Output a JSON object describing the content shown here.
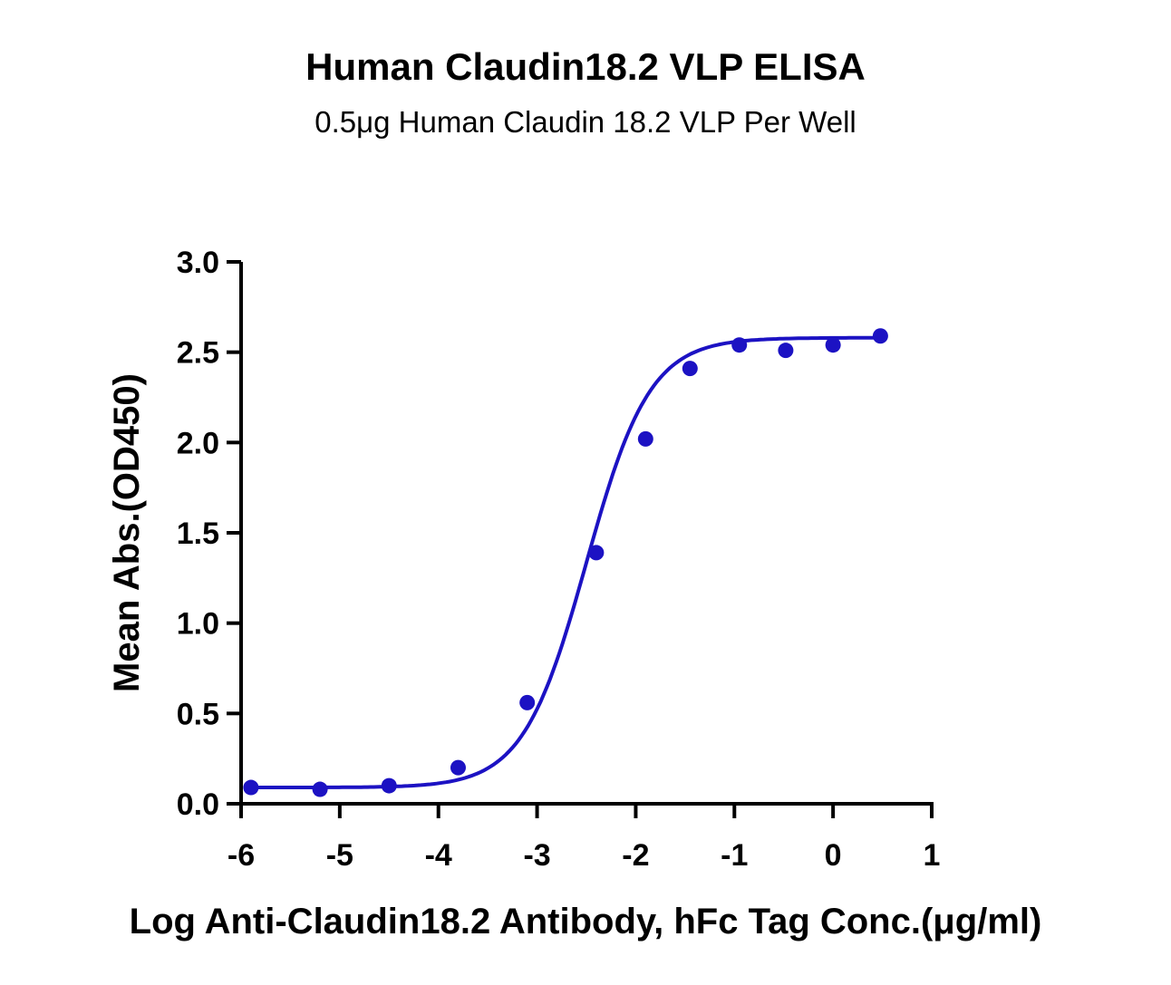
{
  "chart_data": {
    "type": "scatter",
    "title": "Human Claudin18.2 VLP ELISA",
    "subtitle": "0.5μg Human Claudin 18.2 VLP Per Well",
    "xlabel": "Log Anti-Claudin18.2 Antibody, hFc Tag Conc.(μg/ml)",
    "ylabel": "Mean Abs.(OD450)",
    "xlim": [
      -6,
      1
    ],
    "ylim": [
      0,
      3
    ],
    "x_ticks": [
      "-6",
      "-5",
      "-4",
      "-3",
      "-2",
      "-1",
      "0",
      "1"
    ],
    "y_ticks": [
      "0.0",
      "0.5",
      "1.0",
      "1.5",
      "2.0",
      "2.5",
      "3.0"
    ],
    "series": [
      {
        "points": [
          {
            "x": -5.9,
            "y": 0.09
          },
          {
            "x": -5.2,
            "y": 0.08
          },
          {
            "x": -4.5,
            "y": 0.1
          },
          {
            "x": -3.8,
            "y": 0.2
          },
          {
            "x": -3.1,
            "y": 0.56
          },
          {
            "x": -2.4,
            "y": 1.39
          },
          {
            "x": -1.9,
            "y": 2.02
          },
          {
            "x": -1.45,
            "y": 2.41
          },
          {
            "x": -0.95,
            "y": 2.54
          },
          {
            "x": -0.48,
            "y": 2.51
          },
          {
            "x": 0.0,
            "y": 2.54
          },
          {
            "x": 0.48,
            "y": 2.59
          }
        ],
        "fit": {
          "model": "4PL",
          "bottom": 0.09,
          "top": 2.58,
          "logEC50": -2.5,
          "hill": 1.35
        }
      }
    ],
    "colors": {
      "series": "#1c12c3",
      "axis": "#000000"
    },
    "grid": false,
    "legend": "none"
  }
}
